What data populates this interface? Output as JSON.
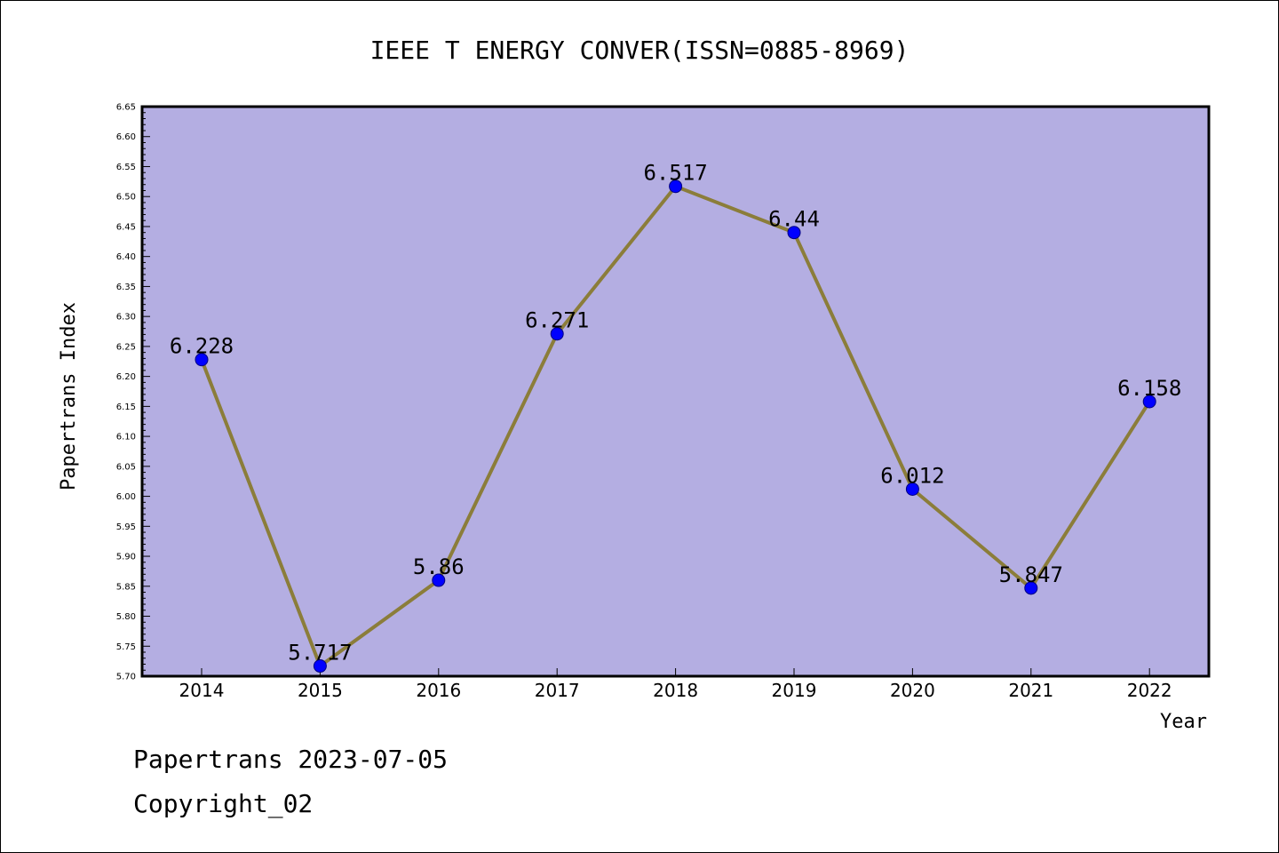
{
  "chart_data": {
    "type": "line",
    "title": "IEEE T ENERGY CONVER(ISSN=0885-8969)",
    "xlabel": "Year",
    "ylabel": "Papertrans Index",
    "categories": [
      "2014",
      "2015",
      "2016",
      "2017",
      "2018",
      "2019",
      "2020",
      "2021",
      "2022"
    ],
    "series": [
      {
        "values": [
          6.228,
          5.717,
          5.86,
          6.271,
          6.517,
          6.44,
          6.012,
          5.847,
          6.158
        ],
        "labels": [
          "6.228",
          "5.717",
          "5.86",
          "6.271",
          "6.517",
          "6.44",
          "6.012",
          "5.847",
          "6.158"
        ]
      }
    ],
    "ylim": [
      5.7,
      6.65
    ],
    "yticks": [
      "5.70",
      "5.75",
      "5.80",
      "5.85",
      "5.90",
      "5.95",
      "6.00",
      "6.05",
      "6.10",
      "6.15",
      "6.20",
      "6.25",
      "6.30",
      "6.35",
      "6.40",
      "6.45",
      "6.50",
      "6.55",
      "6.60",
      "6.65"
    ],
    "grid": false,
    "colors": {
      "plot_background": "#b4aee2",
      "line": "#8b7d3a",
      "marker": "#0000ff",
      "marker_edge": "#000080"
    }
  },
  "footer": {
    "date_line": "Papertrans 2023-07-05",
    "copyright": "Copyright_02"
  }
}
